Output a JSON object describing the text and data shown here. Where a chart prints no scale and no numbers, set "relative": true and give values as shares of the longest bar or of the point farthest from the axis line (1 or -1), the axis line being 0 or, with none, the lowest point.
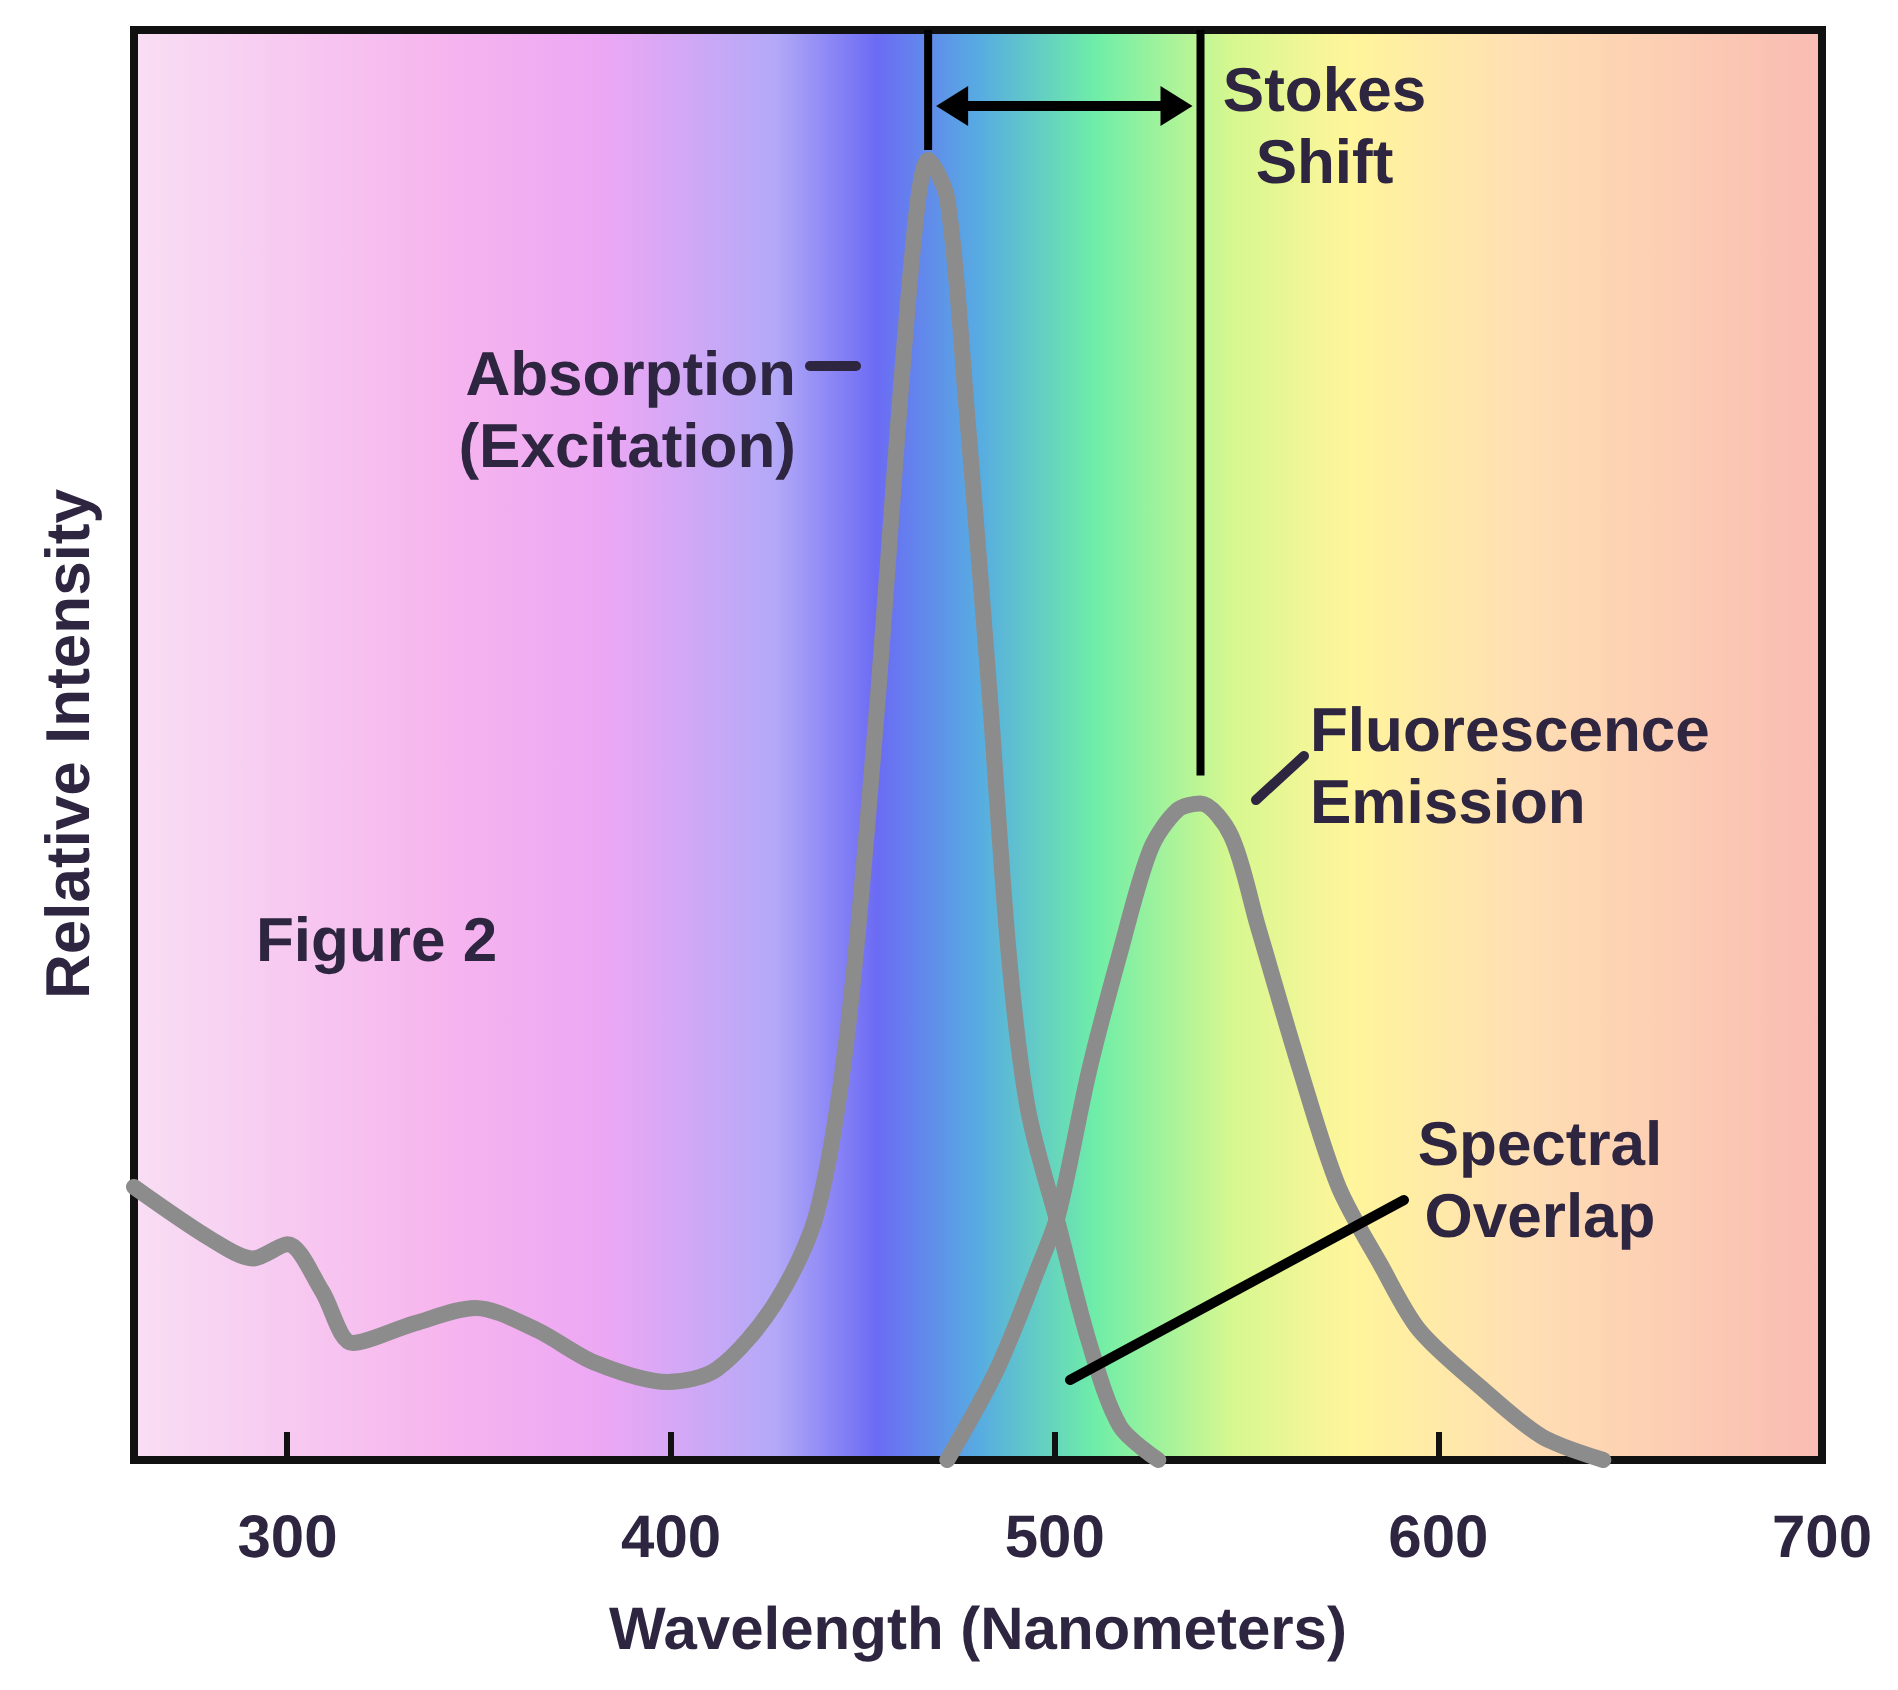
{
  "chart_data": {
    "type": "line",
    "relative": true,
    "xlabel": "Wavelength (Nanometers)",
    "ylabel": "Relative Intensity",
    "xlim": [
      260,
      700
    ],
    "xticks": [
      300,
      400,
      500,
      600,
      700
    ],
    "grid": false,
    "series": [
      {
        "color": "#8c8c8c",
        "x": [
          260,
          280,
          291,
          300,
          309,
          317,
          333,
          349,
          365,
          380,
          399,
          412,
          427,
          438,
          446,
          454,
          459,
          464,
          467,
          472,
          477,
          483,
          488,
          493,
          501,
          509,
          517,
          527
        ],
        "values": [
          0.21,
          0.17,
          0.155,
          0.166,
          0.13,
          0.09,
          0.105,
          0.117,
          0.1,
          0.075,
          0.06,
          0.07,
          0.12,
          0.19,
          0.33,
          0.59,
          0.79,
          0.96,
          1.0,
          0.97,
          0.81,
          0.59,
          0.39,
          0.27,
          0.18,
          0.09,
          0.026,
          0
        ]
      },
      {
        "color": "#8c8c8c",
        "x": [
          472,
          485,
          496,
          501,
          509,
          517,
          525,
          532,
          538,
          546,
          553,
          564,
          574,
          585,
          595,
          611,
          627,
          643
        ],
        "values": [
          0,
          0.07,
          0.15,
          0.19,
          0.3,
          0.39,
          0.47,
          0.5,
          0.505,
          0.48,
          0.41,
          0.3,
          0.21,
          0.15,
          0.1,
          0.056,
          0.018,
          0
        ]
      }
    ],
    "annotations": [
      "Absorption\n(Excitation)",
      "Fluorescence\nEmission",
      "Spectral\nOverlap",
      "Stokes\nShift",
      "Figure 2"
    ]
  }
}
